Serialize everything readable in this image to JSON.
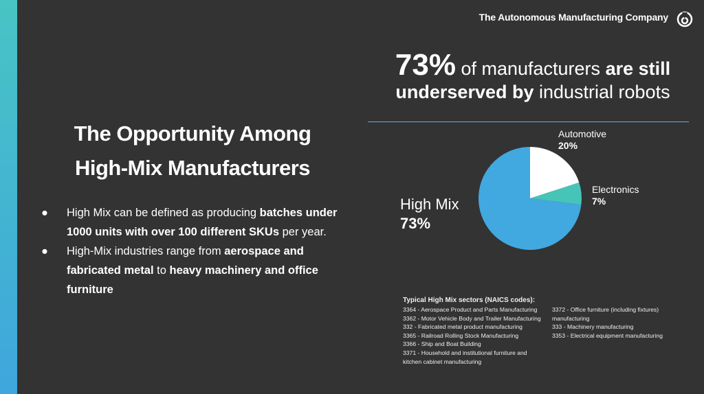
{
  "header": {
    "company": "The Autonomous Manufacturing Company",
    "logo_icon": "ring-logo-icon"
  },
  "colors": {
    "background": "#333333",
    "accent_bar": "#44b4d8",
    "high_mix": "#42a8e0",
    "automotive": "#ffffff",
    "electronics": "#47c4b8"
  },
  "left": {
    "title_line1": "The Opportunity Among",
    "title_line2": "High-Mix Manufacturers",
    "bullets": [
      {
        "bullet": "●",
        "parts": [
          "High Mix can be defined as producing ",
          "batches under 1000 units with over 100 different SKUs",
          " per year."
        ]
      },
      {
        "bullet": "●",
        "parts": [
          "High-Mix industries range from ",
          "aerospace and fabricated metal",
          " to ",
          "heavy machinery and office furniture"
        ]
      }
    ]
  },
  "headline": {
    "big": "73%",
    "t1": " of manufacturers ",
    "t2": "are still",
    "t3": "underserved by",
    "t4": " industrial robots"
  },
  "chart_data": {
    "type": "pie",
    "categories": [
      "Automotive",
      "Electronics",
      "High Mix"
    ],
    "values": [
      20,
      7,
      73
    ],
    "labels": [
      "20%",
      "7%",
      "73%"
    ],
    "start": "12 o'clock, clockwise"
  },
  "sectors": {
    "title": "Typical High Mix sectors (NAICS codes):",
    "col1": [
      "3364 - Aerospace Product and Parts Manufacturing",
      "3362 - Motor Vehicle Body and Trailer Manufacturing",
      "332 - Fabricated metal product manufacturing",
      "3365 - Railroad Rolling Stock Manufacturing",
      "3366 - Ship and Boat Building",
      "3371 - Household and institutional furniture and",
      "kitchen cabinet manufacturing"
    ],
    "col2": [
      "3372 - Office furniture (including fixtures)",
      "manufacturing",
      "333 - Machinery manufacturing",
      "3353 - Electrical equipment manufacturing"
    ]
  }
}
